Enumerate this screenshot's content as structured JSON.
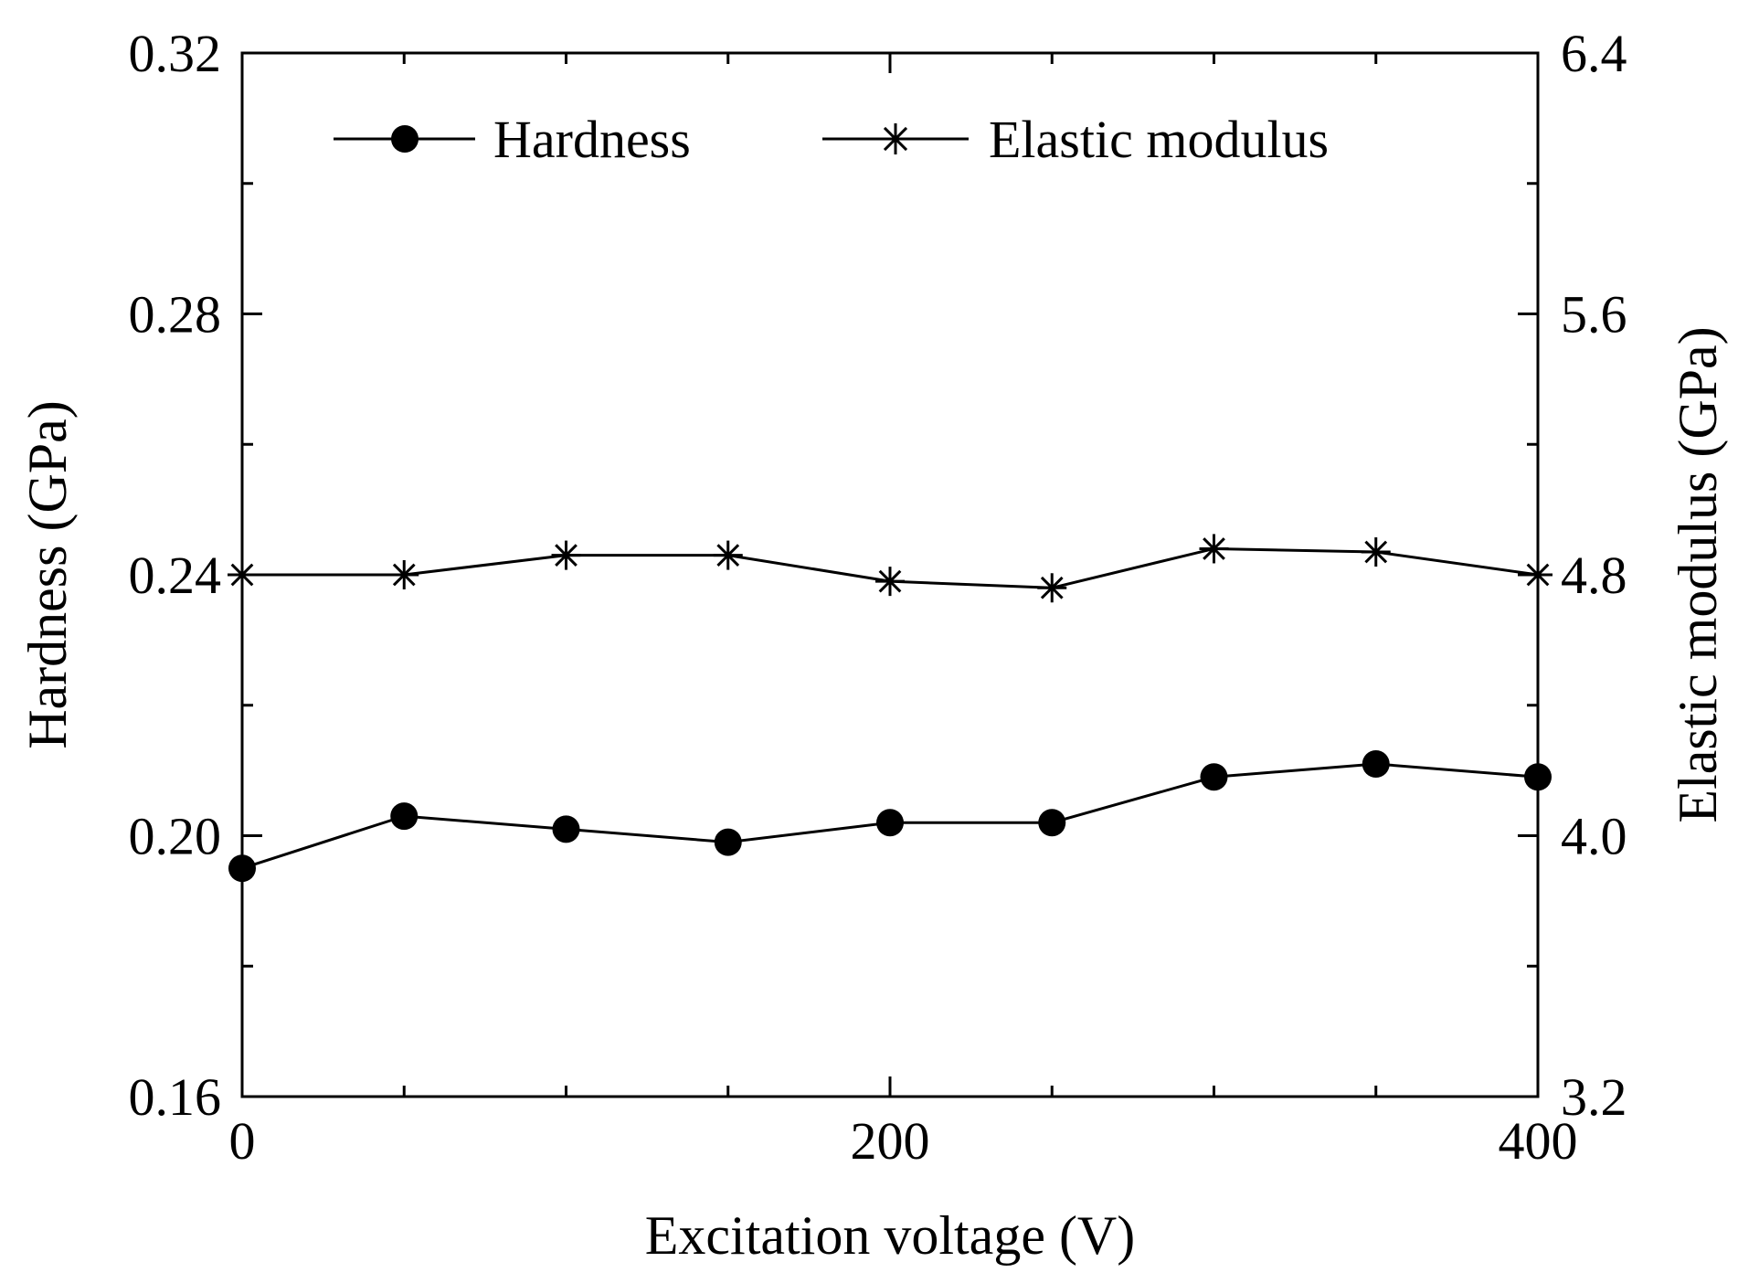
{
  "chart_data": {
    "type": "line",
    "title": "",
    "xlabel": "Excitation voltage (V)",
    "ylabel": "Hardness (GPa)",
    "y2label": "Elastic modulus (GPa)",
    "xlim": [
      0,
      400
    ],
    "ylim": [
      0.16,
      0.32
    ],
    "y2lim": [
      3.2,
      6.4
    ],
    "x_major_ticks": [
      "0",
      "200",
      "400"
    ],
    "y_major_ticks": [
      "0.16",
      "0.20",
      "0.24",
      "0.28",
      "0.32"
    ],
    "y2_major_ticks": [
      "3.2",
      "4.0",
      "4.8",
      "5.6",
      "6.4"
    ],
    "x": [
      0,
      50,
      100,
      150,
      200,
      250,
      300,
      350,
      400
    ],
    "legend_position": "top",
    "series": [
      {
        "name": "Hardness",
        "axis": "left",
        "marker": "circle",
        "values": [
          0.195,
          0.203,
          0.201,
          0.199,
          0.202,
          0.202,
          0.209,
          0.211,
          0.209
        ]
      },
      {
        "name": "Elastic modulus",
        "axis": "right",
        "marker": "asterisk",
        "values": [
          4.8,
          4.8,
          4.86,
          4.86,
          4.78,
          4.76,
          4.88,
          4.87,
          4.8
        ]
      }
    ],
    "colors": {
      "line": "#000000",
      "axis": "#000000"
    }
  }
}
